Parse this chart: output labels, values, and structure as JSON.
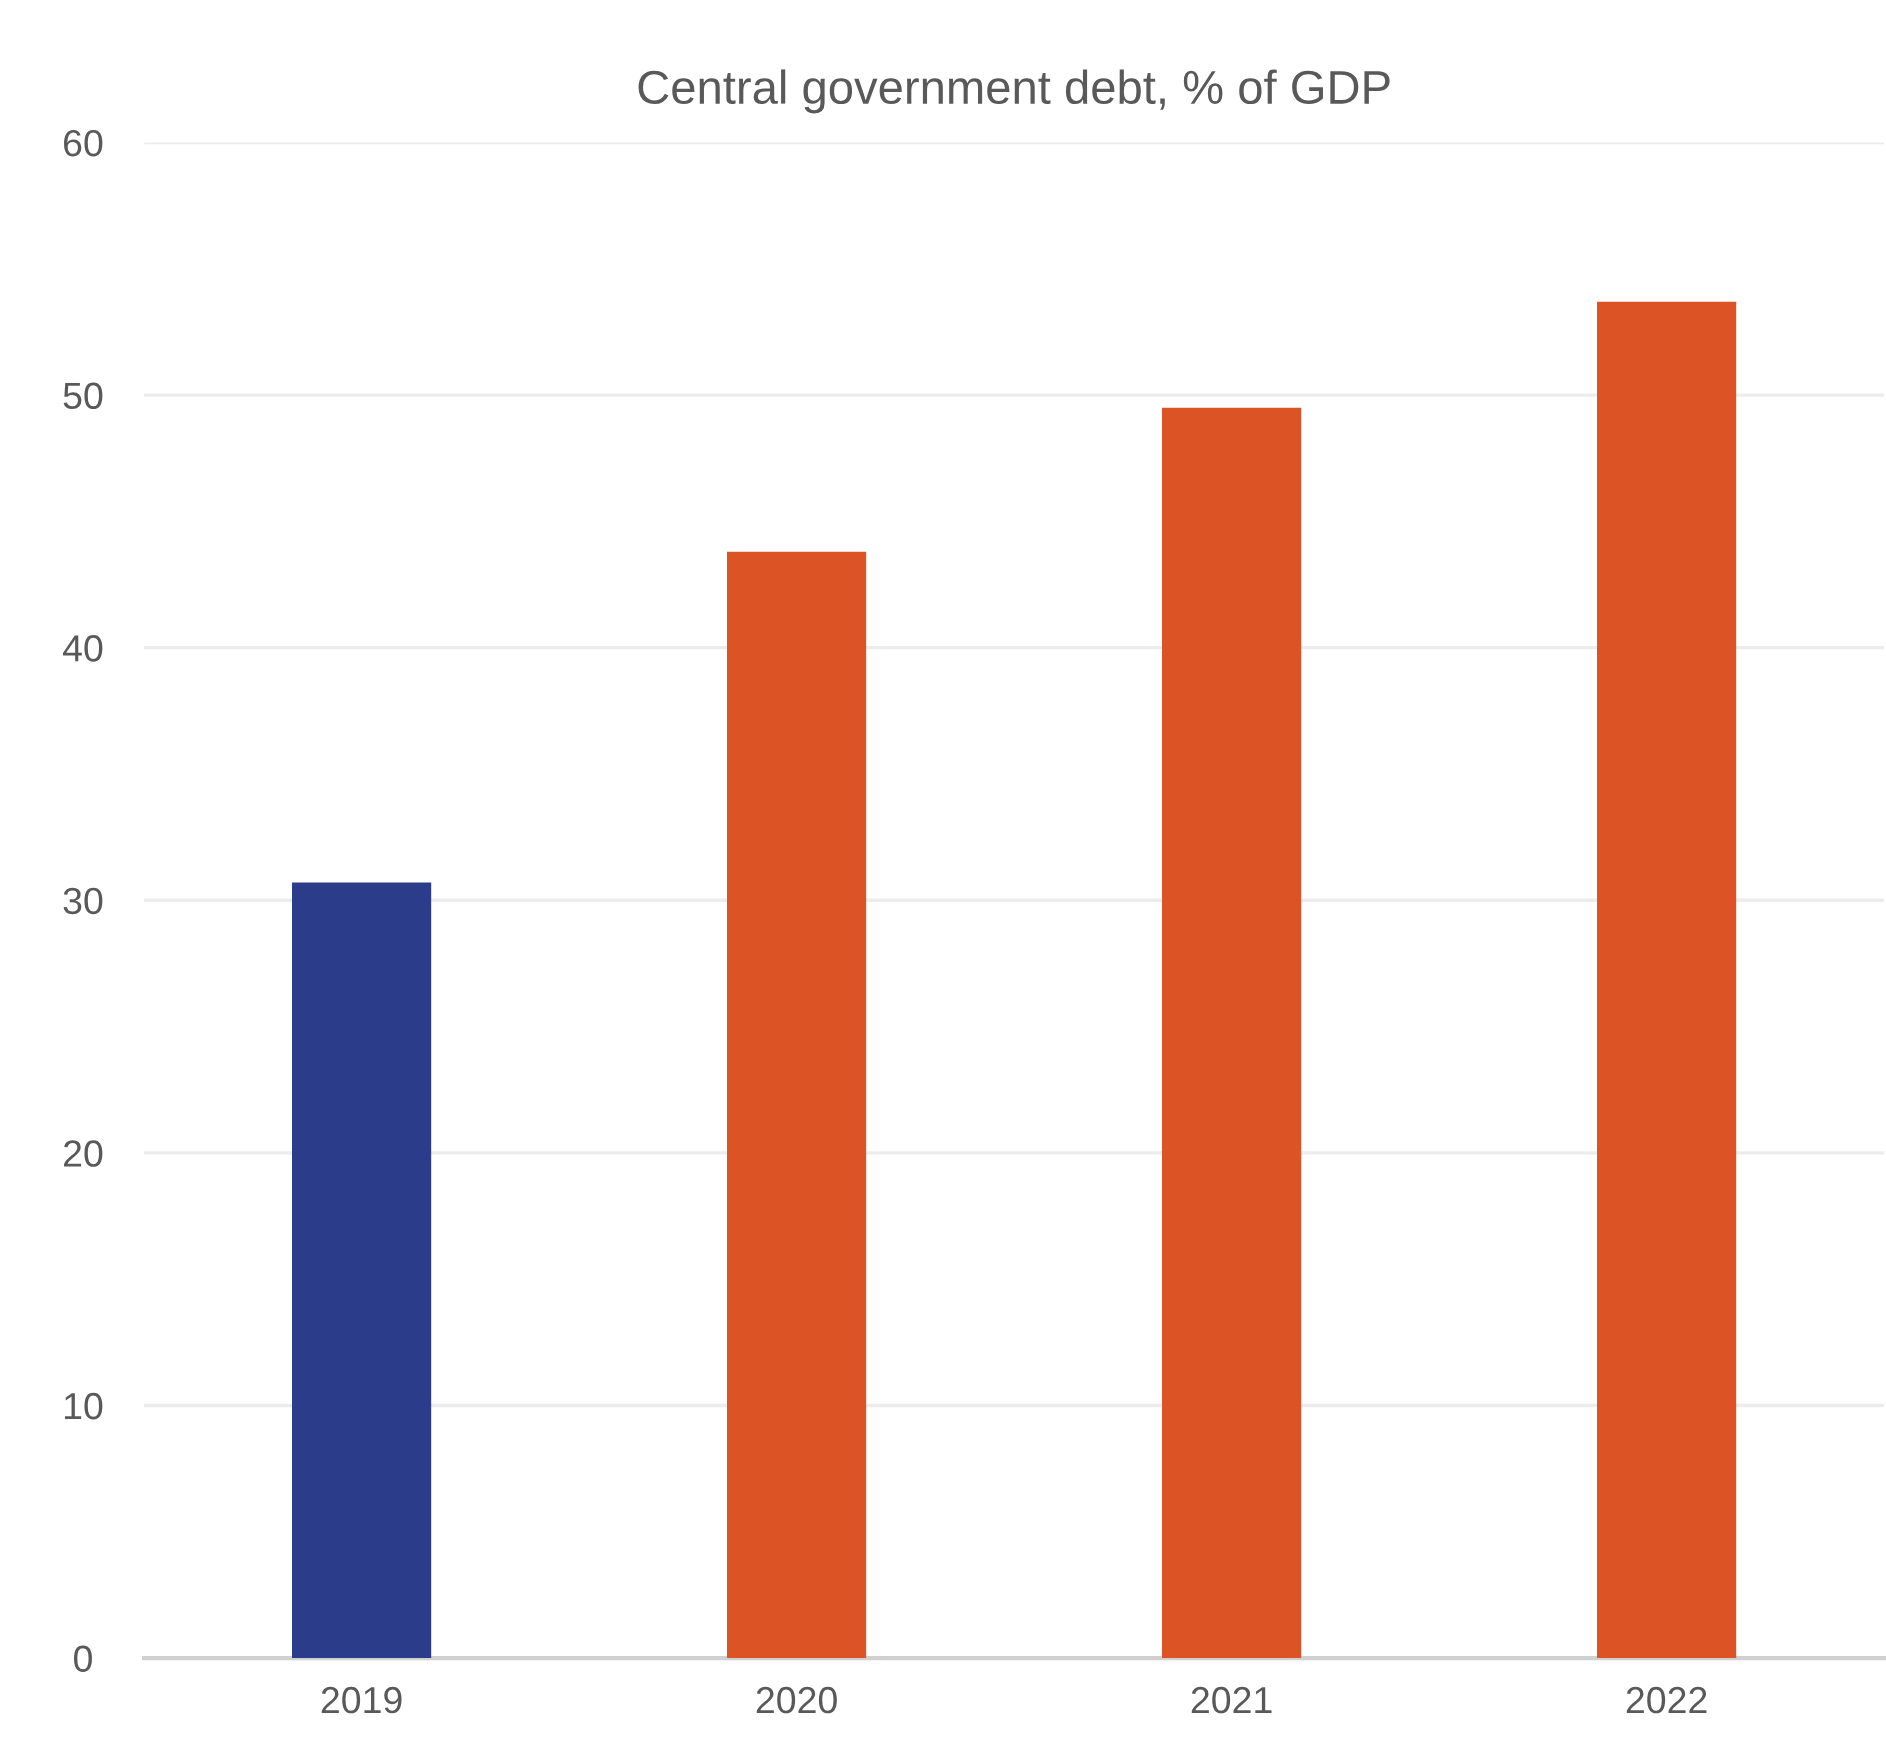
{
  "chart_data": {
    "type": "bar",
    "title": "Central government debt, % of GDP",
    "categories": [
      "2019",
      "2020",
      "2021",
      "2022"
    ],
    "values": [
      30.7,
      43.8,
      49.5,
      53.7
    ],
    "colors": [
      "#2b3d8a",
      "#dc5426",
      "#dc5426",
      "#dc5426"
    ],
    "ylim": [
      0,
      60
    ],
    "yticks": [
      0,
      10,
      20,
      30,
      40,
      50,
      60
    ],
    "grid": "y",
    "legend": false
  }
}
